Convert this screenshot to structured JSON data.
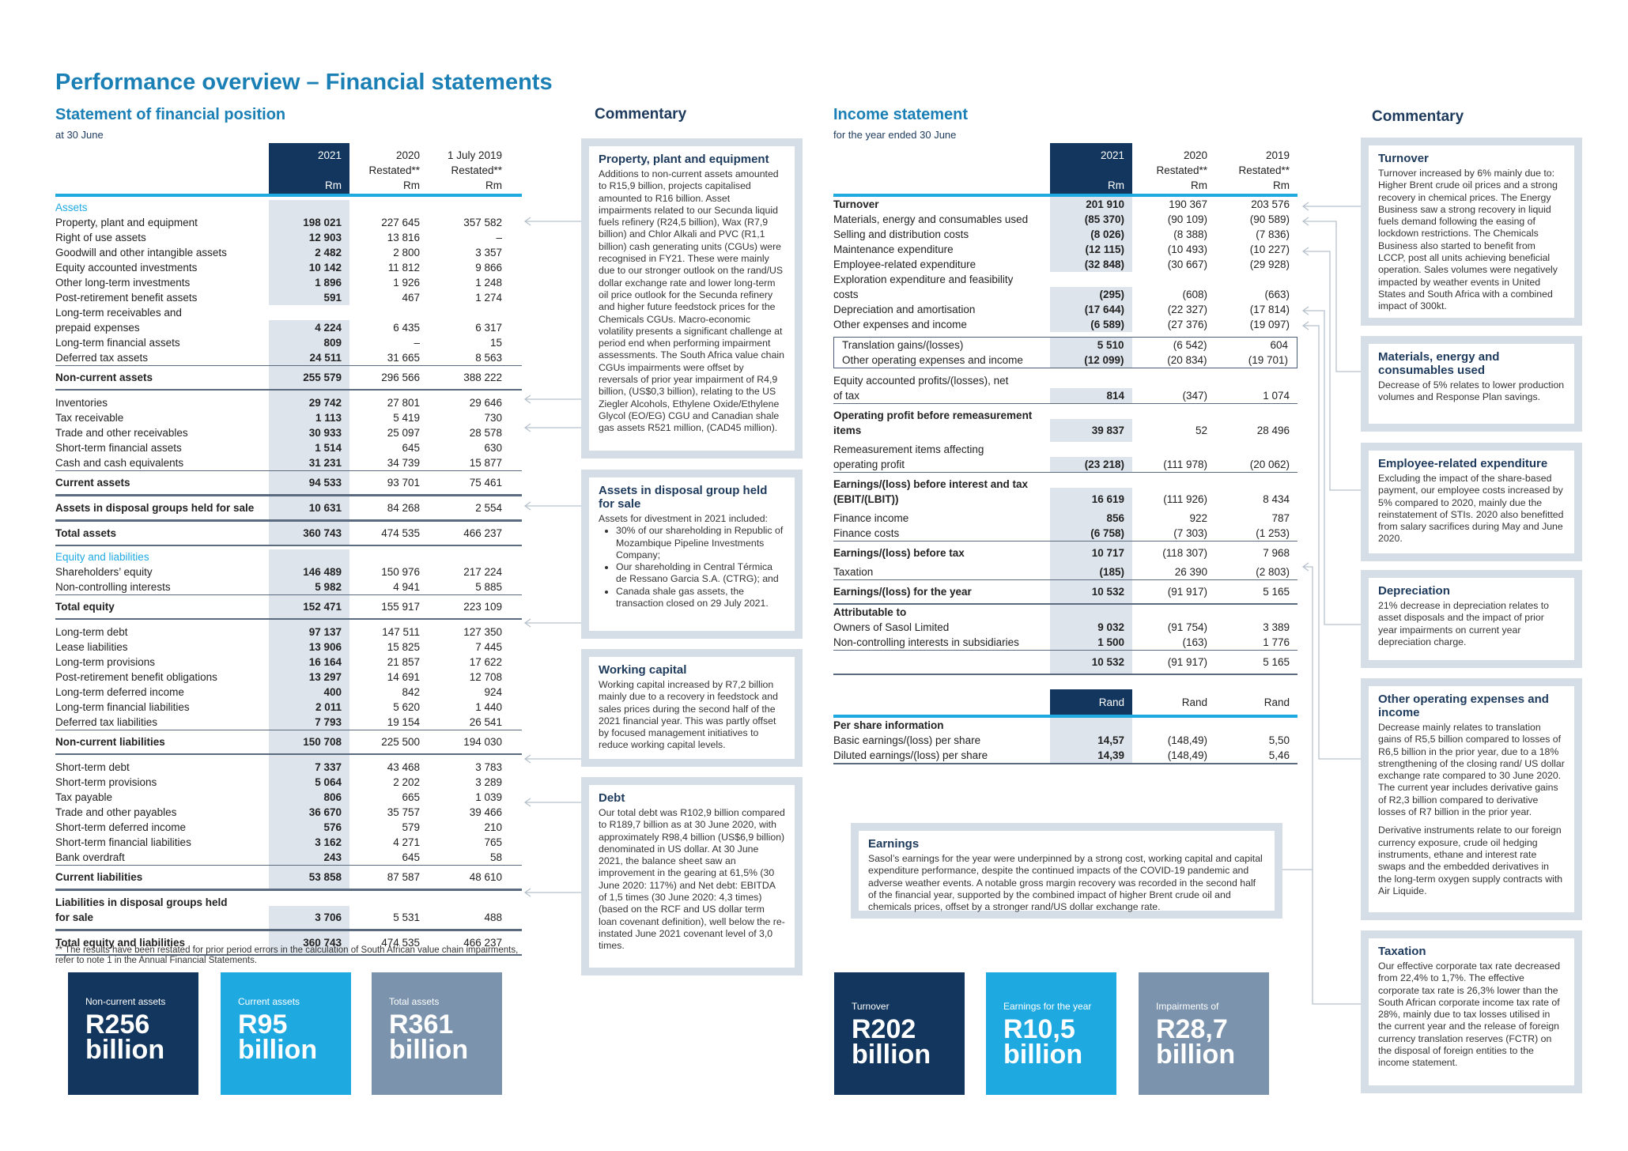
{
  "page_title": "Performance overview – Financial statements",
  "colors": {
    "navy": "#12365d",
    "accent_blue": "#1fa9e1",
    "slate": "#7b93ad",
    "title_blue": "#1a7fb5",
    "shade": "#dde4ec",
    "box_border": "#d5dde6"
  },
  "balance_sheet": {
    "title": "Statement of financial position",
    "subtitle": "at 30 June",
    "columns": [
      {
        "top": "2021",
        "mid": "",
        "unit": "Rm"
      },
      {
        "top": "2020",
        "mid": "Restated**",
        "unit": "Rm"
      },
      {
        "top": "1 July 2019",
        "mid": "Restated**",
        "unit": "Rm"
      }
    ],
    "rows": [
      {
        "kind": "section",
        "label": "Assets"
      },
      {
        "kind": "item",
        "label": "Property, plant and equipment",
        "v": [
          "198 021",
          "227 645",
          "357 582"
        ]
      },
      {
        "kind": "item",
        "label": "Right of use assets",
        "v": [
          "12 903",
          "13 816",
          "–"
        ]
      },
      {
        "kind": "item",
        "label": "Goodwill and other intangible assets",
        "v": [
          "2 482",
          "2 800",
          "3 357"
        ]
      },
      {
        "kind": "item",
        "label": "Equity accounted investments",
        "v": [
          "10 142",
          "11 812",
          "9 866"
        ]
      },
      {
        "kind": "item",
        "label": "Other long-term investments",
        "v": [
          "1 896",
          "1 926",
          "1 248"
        ]
      },
      {
        "kind": "item",
        "label": "Post-retirement benefit assets",
        "v": [
          "591",
          "467",
          "1 274"
        ]
      },
      {
        "kind": "item",
        "label": [
          "Long-term receivables and",
          "prepaid expenses"
        ],
        "v": [
          "4 224",
          "6 435",
          "6 317"
        ]
      },
      {
        "kind": "item",
        "label": "Long-term financial assets",
        "v": [
          "809",
          "–",
          "15"
        ]
      },
      {
        "kind": "item",
        "label": "Deferred tax assets",
        "v": [
          "24 511",
          "31 665",
          "8 563"
        ]
      },
      {
        "kind": "total",
        "label": "Non-current assets",
        "v": [
          "255 579",
          "296 566",
          "388 222"
        ]
      },
      {
        "kind": "gap",
        "label": "Inventories",
        "v": [
          "29 742",
          "27 801",
          "29 646"
        ]
      },
      {
        "kind": "item",
        "label": "Tax receivable",
        "v": [
          "1 113",
          "5 419",
          "730"
        ]
      },
      {
        "kind": "item",
        "label": "Trade and other receivables",
        "v": [
          "30 933",
          "25 097",
          "28 578"
        ]
      },
      {
        "kind": "item",
        "label": "Short-term financial assets",
        "v": [
          "1 514",
          "645",
          "630"
        ]
      },
      {
        "kind": "item",
        "label": "Cash and cash equivalents",
        "v": [
          "31 231",
          "34 739",
          "15 877"
        ]
      },
      {
        "kind": "total",
        "label": "Current assets",
        "v": [
          "94 533",
          "93 701",
          "75 461"
        ]
      },
      {
        "kind": "total",
        "label": "Assets in disposal groups held for sale",
        "v": [
          "10 631",
          "84 268",
          "2 554"
        ]
      },
      {
        "kind": "total",
        "label": "Total assets",
        "v": [
          "360 743",
          "474 535",
          "466 237"
        ]
      },
      {
        "kind": "section",
        "label": "Equity and liabilities"
      },
      {
        "kind": "item",
        "label": "Shareholders’ equity",
        "v": [
          "146 489",
          "150 976",
          "217 224"
        ]
      },
      {
        "kind": "item",
        "label": "Non-controlling interests",
        "v": [
          "5 982",
          "4 941",
          "5 885"
        ]
      },
      {
        "kind": "total",
        "label": "Total equity",
        "v": [
          "152 471",
          "155 917",
          "223 109"
        ]
      },
      {
        "kind": "gap",
        "label": "Long-term debt",
        "v": [
          "97 137",
          "147 511",
          "127 350"
        ]
      },
      {
        "kind": "item",
        "label": "Lease liabilities",
        "v": [
          "13 906",
          "15 825",
          "7 445"
        ]
      },
      {
        "kind": "item",
        "label": "Long-term provisions",
        "v": [
          "16 164",
          "21 857",
          "17 622"
        ]
      },
      {
        "kind": "item",
        "label": "Post-retirement benefit obligations",
        "v": [
          "13 297",
          "14 691",
          "12 708"
        ]
      },
      {
        "kind": "item",
        "label": "Long-term deferred income",
        "v": [
          "400",
          "842",
          "924"
        ]
      },
      {
        "kind": "item",
        "label": "Long-term financial liabilities",
        "v": [
          "2 011",
          "5 620",
          "1 440"
        ]
      },
      {
        "kind": "item",
        "label": "Deferred tax liabilities",
        "v": [
          "7 793",
          "19 154",
          "26 541"
        ]
      },
      {
        "kind": "total",
        "label": "Non-current liabilities",
        "v": [
          "150 708",
          "225 500",
          "194 030"
        ]
      },
      {
        "kind": "gap",
        "label": "Short-term debt",
        "v": [
          "7 337",
          "43 468",
          "3 783"
        ]
      },
      {
        "kind": "item",
        "label": "Short-term provisions",
        "v": [
          "5 064",
          "2 202",
          "3 289"
        ]
      },
      {
        "kind": "item",
        "label": "Tax payable",
        "v": [
          "806",
          "665",
          "1 039"
        ]
      },
      {
        "kind": "item",
        "label": "Trade and other payables",
        "v": [
          "36 670",
          "35 757",
          "39 466"
        ]
      },
      {
        "kind": "item",
        "label": "Short-term deferred income",
        "v": [
          "576",
          "579",
          "210"
        ]
      },
      {
        "kind": "item",
        "label": "Short-term financial liabilities",
        "v": [
          "3 162",
          "4 271",
          "765"
        ]
      },
      {
        "kind": "item",
        "label": "Bank overdraft",
        "v": [
          "243",
          "645",
          "58"
        ]
      },
      {
        "kind": "total",
        "label": "Current liabilities",
        "v": [
          "53 858",
          "87 587",
          "48 610"
        ]
      },
      {
        "kind": "total",
        "label": [
          "Liabilities in disposal groups held",
          "for sale"
        ],
        "v": [
          "3 706",
          "5 531",
          "488"
        ]
      },
      {
        "kind": "total",
        "label": "Total equity and liabilities",
        "v": [
          "360 743",
          "474 535",
          "466 237"
        ]
      }
    ],
    "footnote": "** The results have been restated for prior period errors in the calculation of South African value chain impairments, refer to note 1 in the Annual Financial Statements."
  },
  "balance_highlights": [
    {
      "label": "Non-current assets",
      "value": "R256",
      "unit": "billion",
      "color": "#12365d"
    },
    {
      "label": "Current assets",
      "value": "R95",
      "unit": "billion",
      "color": "#1fa9e1"
    },
    {
      "label": "Total assets",
      "value": "R361",
      "unit": "billion",
      "color": "#7b93ad"
    }
  ],
  "commentary_left": {
    "title": "Commentary",
    "boxes": [
      {
        "title": "Property, plant and equipment",
        "paragraphs": [
          "Additions to non-current assets amounted to R15,9 billion, projects capitalised amounted to R16 billion. Asset impairments related to our Secunda liquid fuels refinery (R24,5 billion), Wax (R7,9 billion) and Chlor Alkali and PVC (R1,1 billion) cash generating units (CGUs) were recognised in FY21. These were mainly due to our stronger outlook on the rand/US dollar exchange rate and lower long-term oil price outlook for the Secunda refinery and higher future feedstock prices for the Chemicals CGUs. Macro-economic volatility presents a significant challenge at period end when performing impairment assessments. The South Africa value chain CGUs impairments were offset by reversals of prior year impairment of R4,9 billion, (US$0,3 billion), relating to the US Ziegler Alcohols, Ethylene Oxide/Ethylene Glycol (EO/EG) CGU and Canadian shale gas assets R521 million, (CAD45 million)."
        ]
      },
      {
        "title": "Assets in disposal group held for sale",
        "paragraphs": [
          "Assets for divestment in 2021 included:"
        ],
        "bullets": [
          "30% of our shareholding in Republic of Mozambique Pipeline Investments Company;",
          "Our shareholding in Central Térmica de Ressano Garcia S.A. (CTRG); and",
          "Canada shale gas assets, the transaction closed on 29 July 2021."
        ]
      },
      {
        "title": "Working capital",
        "paragraphs": [
          "Working capital increased by R7,2 billion mainly due to a recovery in feedstock and sales prices during the second half of the 2021 financial year. This was partly offset by focused management initiatives to reduce working capital levels."
        ]
      },
      {
        "title": "Debt",
        "paragraphs": [
          "Our total debt was R102,9 billion compared to R189,7 billion as at 30 June 2020, with approximately R98,4 billion (US$6,9 billion) denominated in US dollar. At 30 June 2021, the balance sheet saw an improvement in the gearing at 61,5% (30 June 2020: 117%) and Net debt: EBITDA of 1,5 times (30 June 2020: 4,3 times) (based on the RCF and US dollar term loan covenant definition), well below the re-instated June 2021 covenant level of 3,0 times."
        ]
      }
    ]
  },
  "income_statement": {
    "title": "Income statement",
    "subtitle": "for the year ended 30 June",
    "columns": [
      {
        "top": "2021",
        "mid": "",
        "unit": "Rm"
      },
      {
        "top": "2020",
        "mid": "Restated**",
        "unit": "Rm"
      },
      {
        "top": "2019",
        "mid": "Restated**",
        "unit": "Rm"
      }
    ],
    "rows": [
      {
        "kind": "strong",
        "label": "Turnover",
        "v": [
          "201 910",
          "190 367",
          "203 576"
        ]
      },
      {
        "kind": "item",
        "label": "Materials, energy and consumables used",
        "v": [
          "(85 370)",
          "(90 109)",
          "(90 589)"
        ]
      },
      {
        "kind": "item",
        "label": "Selling and distribution costs",
        "v": [
          "(8 026)",
          "(8 388)",
          "(7 836)"
        ]
      },
      {
        "kind": "item",
        "label": "Maintenance expenditure",
        "v": [
          "(12 115)",
          "(10 493)",
          "(10 227)"
        ]
      },
      {
        "kind": "item",
        "label": "Employee-related expenditure",
        "v": [
          "(32 848)",
          "(30 667)",
          "(29 928)"
        ]
      },
      {
        "kind": "item",
        "label": [
          "Exploration expenditure and feasibility",
          "costs"
        ],
        "v": [
          "(295)",
          "(608)",
          "(663)"
        ]
      },
      {
        "kind": "item",
        "label": "Depreciation and amortisation",
        "v": [
          "(17 644)",
          "(22 327)",
          "(17 814)"
        ]
      },
      {
        "kind": "item",
        "label": "Other expenses and income",
        "v": [
          "(6 589)",
          "(27 376)",
          "(19 097)"
        ]
      },
      {
        "kind": "boxed",
        "rows": [
          {
            "kind": "item",
            "label": "Translation gains/(losses)",
            "v": [
              "5 510",
              "(6 542)",
              "604"
            ]
          },
          {
            "kind": "item",
            "label": "Other operating expenses and income",
            "v": [
              "(12 099)",
              "(20 834)",
              "(19 701)"
            ]
          }
        ]
      },
      {
        "kind": "item",
        "label": [
          "Equity accounted profits/(losses), net",
          "of tax"
        ],
        "v": [
          "814",
          "(347)",
          "1 074"
        ]
      },
      {
        "kind": "total",
        "label": [
          "Operating profit before remeasurement",
          "items"
        ],
        "v": [
          "39 837",
          "52",
          "28 496"
        ],
        "open": true
      },
      {
        "kind": "item",
        "label": [
          "Remeasurement items affecting",
          "operating profit"
        ],
        "v": [
          "(23 218)",
          "(111 978)",
          "(20 062)"
        ]
      },
      {
        "kind": "total",
        "label": [
          "Earnings/(loss) before interest and tax",
          "(EBIT/(LBIT))"
        ],
        "v": [
          "16 619",
          "(111 926)",
          "8 434"
        ],
        "open": true
      },
      {
        "kind": "item",
        "label": "Finance income",
        "v": [
          "856",
          "922",
          "787"
        ]
      },
      {
        "kind": "item",
        "label": "Finance costs",
        "v": [
          "(6 758)",
          "(7 303)",
          "(1 253)"
        ]
      },
      {
        "kind": "total",
        "label": "Earnings/(loss) before tax",
        "v": [
          "10 717",
          "(118 307)",
          "7 968"
        ],
        "open": true
      },
      {
        "kind": "item",
        "label": "Taxation",
        "v": [
          "(185)",
          "26 390",
          "(2 803)"
        ]
      },
      {
        "kind": "total",
        "label": "Earnings/(loss) for the year",
        "v": [
          "10 532",
          "(91 917)",
          "5 165"
        ]
      },
      {
        "kind": "heading",
        "label": "Attributable to"
      },
      {
        "kind": "item",
        "label": "Owners of Sasol Limited",
        "v": [
          "9 032",
          "(91 754)",
          "3 389"
        ]
      },
      {
        "kind": "item",
        "label": "Non-controlling interests in subsidiaries",
        "v": [
          "1 500",
          "(163)",
          "1 776"
        ]
      },
      {
        "kind": "total",
        "label": "",
        "v": [
          "10 532",
          "(91 917)",
          "5 165"
        ]
      }
    ],
    "per_share_units": [
      "Rand",
      "Rand",
      "Rand"
    ],
    "per_share_rows": [
      {
        "kind": "heading",
        "label": "Per share information"
      },
      {
        "kind": "item",
        "label": "Basic earnings/(loss) per share",
        "v": [
          "14,57",
          "(148,49)",
          "5,50"
        ]
      },
      {
        "kind": "item",
        "label": "Diluted earnings/(loss) per share",
        "v": [
          "14,39",
          "(148,49)",
          "5,46"
        ]
      }
    ]
  },
  "earnings_box": {
    "title": "Earnings",
    "text": "Sasol’s earnings for the year were underpinned by a strong cost, working capital and capital expenditure performance, despite the continued impacts of the COVID-19 pandemic and adverse weather events. A notable gross margin recovery was recorded in the second half of the financial year, supported by the combined impact of higher Brent crude oil and chemicals prices, offset by a stronger rand/US dollar exchange rate."
  },
  "income_highlights": [
    {
      "label": "Turnover",
      "value": "R202",
      "unit": "billion",
      "color": "#12365d"
    },
    {
      "label": "Earnings for the year",
      "value": "R10,5",
      "unit": "billion",
      "color": "#1fa9e1"
    },
    {
      "label": "Impairments of",
      "value": "R28,7",
      "unit": "billion",
      "color": "#7b93ad"
    }
  ],
  "commentary_right": {
    "title": "Commentary",
    "boxes": [
      {
        "title": "Turnover",
        "paragraphs": [
          "Turnover increased by 6% mainly due to: Higher Brent crude oil prices and a strong recovery in chemical prices. The Energy Business saw a strong recovery in liquid fuels demand following the easing of lockdown restrictions. The Chemicals Business also started to benefit from LCCP, post all units achieving beneficial operation. Sales volumes were negatively impacted by weather events in United States and South Africa with a combined impact of 300kt."
        ]
      },
      {
        "title": "Materials, energy and consumables used",
        "paragraphs": [
          "Decrease of 5% relates to lower production volumes and Response Plan savings."
        ]
      },
      {
        "title": "Employee-related expenditure",
        "paragraphs": [
          "Excluding the impact of the share-based payment, our employee costs increased by 5% compared to 2020, mainly due the reinstatement of STIs. 2020 also benefitted from salary sacrifices during May and June 2020."
        ]
      },
      {
        "title": "Depreciation",
        "paragraphs": [
          "21% decrease in depreciation relates to asset disposals and the impact of prior year impairments on current year depreciation charge."
        ]
      },
      {
        "title": "Other operating expenses and income",
        "paragraphs": [
          "Decrease mainly relates to translation gains of R5,5 billion compared to losses of R6,5 billion in the prior year, due to a 18% strengthening of the closing rand/ US dollar exchange rate compared to 30 June 2020. The current year includes derivative gains of R2,3 billion compared to derivative losses of R7 billion in the prior year.",
          "Derivative instruments relate to our foreign currency exposure, crude oil hedging instruments, ethane and interest rate swaps and the embedded derivatives in the long-term oxygen supply contracts with Air Liquide."
        ]
      },
      {
        "title": "Taxation",
        "paragraphs": [
          "Our effective corporate tax rate decreased from 22,4% to 1,7%. The effective corporate tax rate is 26,3% lower than the South African corporate income tax rate of 28%, mainly due to tax losses utilised in the current year and the release of foreign currency translation reserves (FCTR) on the disposal of foreign entities to the income statement."
        ]
      }
    ]
  }
}
